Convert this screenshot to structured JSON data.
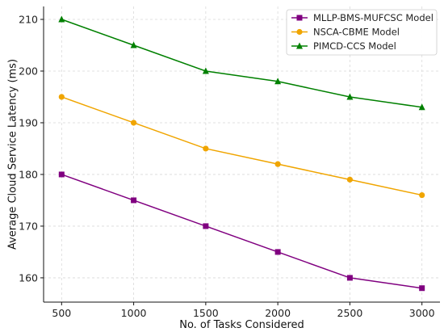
{
  "chart_data": {
    "type": "line",
    "title": "",
    "xlabel": "No. of Tasks Considered",
    "ylabel": "Average Cloud Service Latency (ms)",
    "x": [
      500,
      1000,
      1500,
      2000,
      2500,
      3000
    ],
    "xlim": [
      375,
      3125
    ],
    "ylim": [
      155.3,
      212.5
    ],
    "xticks": [
      500,
      1000,
      1500,
      2000,
      2500,
      3000
    ],
    "yticks": [
      160,
      170,
      180,
      190,
      200,
      210
    ],
    "grid": true,
    "legend_position": "top-right",
    "series": [
      {
        "name": "MLLP-BMS-MUFCSC Model",
        "color": "#800080",
        "marker": "square",
        "values": [
          180,
          175,
          170,
          165,
          160,
          158
        ]
      },
      {
        "name": "NSCA-CBME Model",
        "color": "#f0a500",
        "marker": "circle",
        "values": [
          195,
          190,
          185,
          182,
          179,
          176
        ]
      },
      {
        "name": "PIMCD-CCS Model",
        "color": "#008000",
        "marker": "triangle",
        "values": [
          210,
          205,
          200,
          198,
          195,
          193
        ]
      }
    ]
  }
}
